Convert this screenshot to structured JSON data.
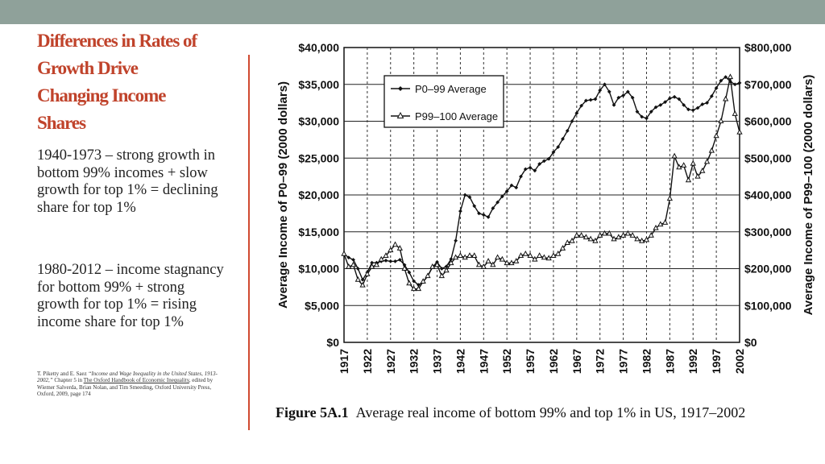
{
  "slide": {
    "title": "Differences in Rates of\nGrowth  Drive\nChanging Income\nShares",
    "paragraph1": "1940-1973 – strong growth in bottom 99% incomes + slow growth for top 1% = declining share for top 1%",
    "paragraph2": "1980-2012 – income stagnancy for bottom 99% + strong growth for top 1% = rising income share for top 1%",
    "citation": {
      "authors": "T. Piketty  and E. Saez ",
      "article": "“Income and Wage Inequality in the United States, 1913-2002,”",
      "chapter": "  Chapter 5 in ",
      "book": "The Oxford Handbook of Economic Inequality",
      "rest": ", edited by Wiemer Salverda, Brian Nolan, and Tim Smeeding, Oxford University Press, Oxford, 2009, page 174"
    },
    "colors": {
      "title": "#c0432b",
      "divider": "#d04a30",
      "topbar": "#8fa19a"
    }
  },
  "figure": {
    "caption_label": "Figure 5A.1",
    "caption_text": "Average real income of bottom 99% and top 1% in US, 1917–2002"
  },
  "chart_data": {
    "type": "line",
    "ylabel": "Average Income of P0–99 (2000 dollars)",
    "y2label": "Average Income of P99–100 (2000 dollars)",
    "x_ticks": [
      "1917",
      "1922",
      "1927",
      "1932",
      "1937",
      "1942",
      "1947",
      "1952",
      "1957",
      "1962",
      "1967",
      "1972",
      "1977",
      "1982",
      "1987",
      "1992",
      "1997",
      "2002"
    ],
    "y_ticks": [
      "$0",
      "$5,000",
      "$10,000",
      "$15,000",
      "$20,000",
      "$25,000",
      "$30,000",
      "$35,000",
      "$40,000"
    ],
    "y2_ticks": [
      "$0",
      "$100,000",
      "$200,000",
      "$300,000",
      "$400,000",
      "$500,000",
      "$600,000",
      "$700,000",
      "$800,000"
    ],
    "xlim": [
      1917,
      2002
    ],
    "ylim": [
      0,
      40000
    ],
    "y2lim": [
      0,
      800000
    ],
    "legend_position": "top-left",
    "grid": "horizontal solid, vertical dotted",
    "series": [
      {
        "name": "P0–99 Average",
        "marker": "diamond",
        "axis": "left",
        "x": [
          1917,
          1918,
          1919,
          1920,
          1921,
          1922,
          1923,
          1924,
          1925,
          1926,
          1927,
          1928,
          1929,
          1930,
          1931,
          1932,
          1933,
          1934,
          1935,
          1936,
          1937,
          1938,
          1939,
          1940,
          1941,
          1942,
          1943,
          1944,
          1945,
          1946,
          1947,
          1948,
          1949,
          1950,
          1951,
          1952,
          1953,
          1954,
          1955,
          1956,
          1957,
          1958,
          1959,
          1960,
          1961,
          1962,
          1963,
          1964,
          1965,
          1966,
          1967,
          1968,
          1969,
          1970,
          1971,
          1972,
          1973,
          1974,
          1975,
          1976,
          1977,
          1978,
          1979,
          1980,
          1981,
          1982,
          1983,
          1984,
          1985,
          1986,
          1987,
          1988,
          1989,
          1990,
          1991,
          1992,
          1993,
          1994,
          1995,
          1996,
          1997,
          1998,
          1999,
          2000,
          2001,
          2002
        ],
        "values": [
          12000,
          11500,
          11200,
          10000,
          8500,
          9500,
          10800,
          10800,
          11000,
          11100,
          11000,
          11000,
          11200,
          10500,
          9500,
          8300,
          7800,
          8200,
          9000,
          10200,
          10900,
          10000,
          10300,
          11300,
          13800,
          17800,
          20000,
          19700,
          18500,
          17500,
          17300,
          17000,
          18200,
          19000,
          19800,
          20500,
          21300,
          21000,
          22500,
          23500,
          23700,
          23300,
          24200,
          24600,
          24900,
          25800,
          26500,
          27600,
          28700,
          30000,
          31100,
          32100,
          32800,
          32900,
          33000,
          34200,
          35000,
          34000,
          32200,
          33200,
          33500,
          34000,
          33200,
          31300,
          30600,
          30400,
          31300,
          31900,
          32200,
          32600,
          33100,
          33300,
          33000,
          32200,
          31600,
          31500,
          31800,
          32300,
          32500,
          33400,
          34500,
          35500,
          36000,
          35400,
          35000,
          35200
        ]
      },
      {
        "name": "P99–100 Average",
        "marker": "triangle",
        "axis": "right",
        "x": [
          1917,
          1918,
          1919,
          1920,
          1921,
          1922,
          1923,
          1924,
          1925,
          1926,
          1927,
          1928,
          1929,
          1930,
          1931,
          1932,
          1933,
          1934,
          1935,
          1936,
          1937,
          1938,
          1939,
          1940,
          1941,
          1942,
          1943,
          1944,
          1945,
          1946,
          1947,
          1948,
          1949,
          1950,
          1951,
          1952,
          1953,
          1954,
          1955,
          1956,
          1957,
          1958,
          1959,
          1960,
          1961,
          1962,
          1963,
          1964,
          1965,
          1966,
          1967,
          1968,
          1969,
          1970,
          1971,
          1972,
          1973,
          1974,
          1975,
          1976,
          1977,
          1978,
          1979,
          1980,
          1981,
          1982,
          1983,
          1984,
          1985,
          1986,
          1987,
          1988,
          1989,
          1990,
          1991,
          1992,
          1993,
          1994,
          1995,
          1996,
          1997,
          1998,
          1999,
          2000,
          2001,
          2002
        ],
        "values": [
          240000,
          205000,
          210000,
          170000,
          155000,
          185000,
          205000,
          210000,
          225000,
          235000,
          250000,
          265000,
          255000,
          200000,
          160000,
          145000,
          145000,
          165000,
          180000,
          205000,
          210000,
          180000,
          195000,
          215000,
          230000,
          235000,
          230000,
          235000,
          235000,
          210000,
          205000,
          220000,
          210000,
          230000,
          225000,
          215000,
          215000,
          220000,
          235000,
          240000,
          235000,
          225000,
          235000,
          230000,
          228000,
          235000,
          240000,
          255000,
          270000,
          275000,
          290000,
          290000,
          285000,
          280000,
          275000,
          290000,
          295000,
          295000,
          280000,
          285000,
          290000,
          295000,
          290000,
          280000,
          275000,
          278000,
          290000,
          310000,
          320000,
          325000,
          390000,
          505000,
          475000,
          480000,
          440000,
          485000,
          450000,
          465000,
          490000,
          520000,
          560000,
          600000,
          660000,
          720000,
          620000,
          570000
        ]
      }
    ]
  }
}
